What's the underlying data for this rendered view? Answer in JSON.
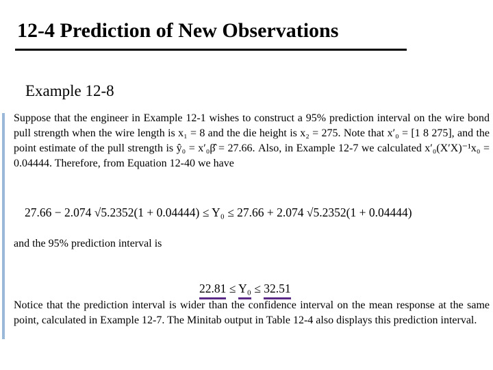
{
  "header": {
    "title": "12-4 Prediction of New Observations",
    "subtitle": "Example 12-8"
  },
  "body": {
    "paragraph1": "Suppose that the engineer in Example 12-1 wishes to construct a 95% prediction interval on the wire bond pull strength when the wire length is x₁ = 8 and the die height is x₂ = 275. Note that x′₀ = [1   8   275], and the point estimate of the pull strength is ŷ₀ = x′₀β̂ = 27.66. Also, in Example 12-7 we calculated x′₀(X′X)⁻¹x₀ = 0.04444. Therefore, from Equation 12-40 we have",
    "equation1": "27.66 − 2.074 √5.2352(1 + 0.04444) ≤ Y₀ ≤ 27.66 + 2.074 √5.2352(1 + 0.04444)",
    "paragraph2": "and the 95% prediction interval is",
    "equation2": [
      "22.81",
      " ≤ ",
      "Y₀",
      " ≤ ",
      "32.51"
    ],
    "paragraph3": "Notice that the prediction interval is wider than the confidence interval on the mean response at the same point, calculated in Example 12-7. The Minitab output in Table 12-4 also displays this prediction interval."
  }
}
